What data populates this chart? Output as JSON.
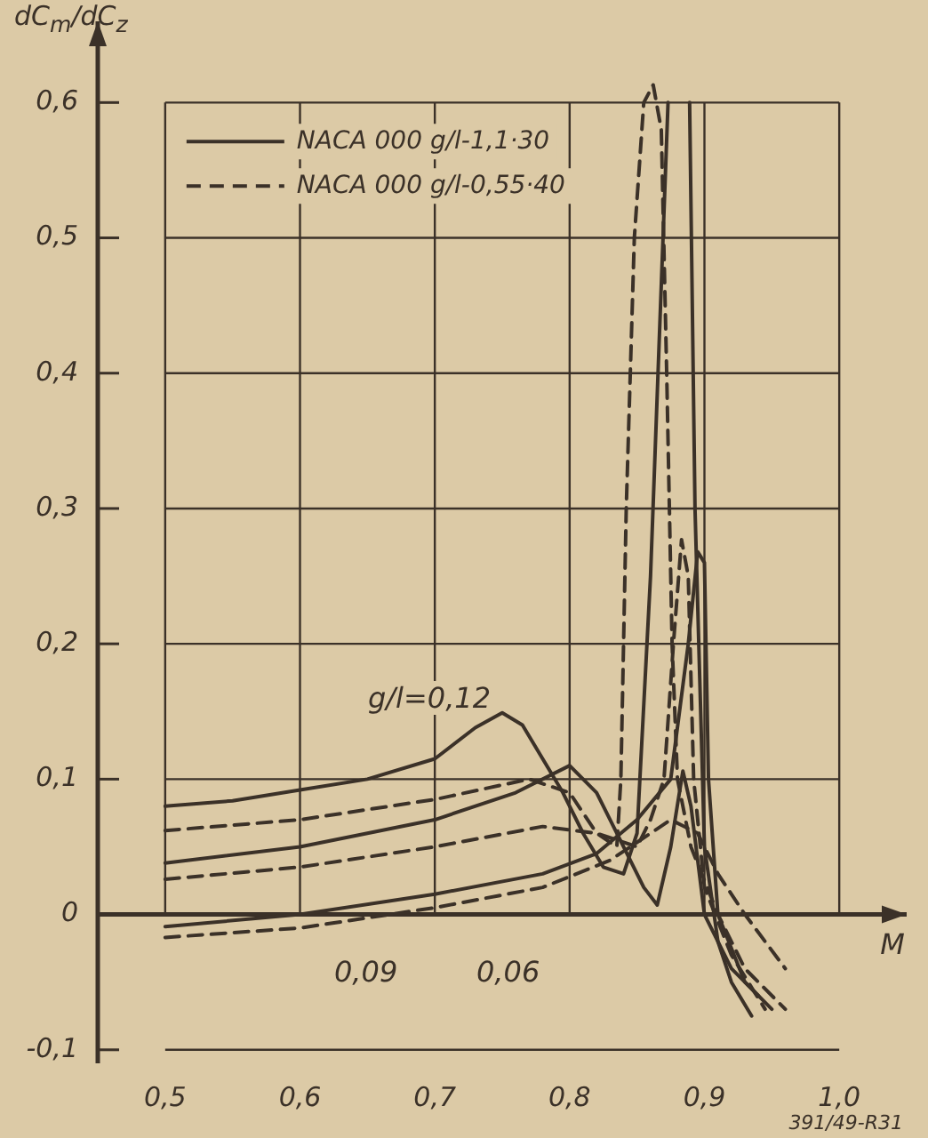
{
  "chart_data": {
    "type": "line",
    "ylabel": "dC$_{m}$/dC$_{z}$",
    "xlabel": "M",
    "xlim": [
      0.45,
      1.05
    ],
    "ylim": [
      -0.11,
      0.66
    ],
    "xticks": [
      {
        "value": 0.5,
        "label": "0,5"
      },
      {
        "value": 0.6,
        "label": "0,6"
      },
      {
        "value": 0.7,
        "label": "0,7"
      },
      {
        "value": 0.8,
        "label": "0,8"
      },
      {
        "value": 0.9,
        "label": "0,9"
      },
      {
        "value": 1.0,
        "label": "1,0"
      }
    ],
    "yticks": [
      {
        "value": -0.1,
        "label": "-0,1"
      },
      0,
      {
        "value": 0.1,
        "label": "0,1"
      },
      {
        "value": 0.2,
        "label": "0,2"
      },
      {
        "value": 0.3,
        "label": "0,3"
      },
      {
        "value": 0.4,
        "label": "0,4"
      },
      {
        "value": 0.5,
        "label": "0,5"
      },
      {
        "value": 0.6,
        "label": "0,6"
      }
    ],
    "grid": true,
    "legend": "top left",
    "marker": "none",
    "series": [
      {
        "name": "NACA 000 g/l-1,1·30",
        "color": "#3b3128",
        "line_style": "solid",
        "x": [
          0.5,
          0.55,
          0.6,
          0.65,
          0.7,
          0.73,
          0.75,
          0.765,
          0.78,
          0.795,
          0.81,
          0.825,
          0.84,
          0.85,
          0.86,
          0.873,
          0.88,
          0.889,
          0.893,
          0.9,
          0.91,
          0.92,
          0.935
        ],
        "values": [
          0.08,
          0.084,
          0.092,
          0.1,
          0.115,
          0.138,
          0.149,
          0.14,
          0.115,
          0.09,
          0.06,
          0.035,
          0.03,
          0.06,
          0.25,
          0.6,
          null,
          0.6,
          0.3,
          0.05,
          -0.02,
          -0.05,
          -0.075
        ]
      },
      {
        "name": "NACA 000 g/l-0,55·40",
        "color": "#3b3128",
        "line_style": "dashed",
        "x": [
          0.5,
          0.6,
          0.7,
          0.77,
          0.8,
          0.82,
          0.835,
          0.838,
          0.842,
          0.848,
          0.855,
          0.862,
          0.868,
          0.872,
          0.876,
          0.88,
          0.89,
          0.91,
          0.93,
          0.96
        ],
        "values": [
          0.062,
          0.07,
          0.085,
          0.1,
          0.09,
          0.06,
          0.05,
          0.1,
          0.3,
          0.5,
          0.6,
          0.613,
          0.58,
          0.4,
          0.2,
          0.1,
          0.05,
          0.0,
          -0.04,
          -0.07
        ]
      },
      {
        "color": "#3b3128",
        "line_style": "solid",
        "x": [
          0.5,
          0.6,
          0.7,
          0.76,
          0.8,
          0.82,
          0.84,
          0.855,
          0.865,
          0.875,
          0.884,
          0.89,
          0.9,
          0.92,
          0.94
        ],
        "values": [
          0.038,
          0.05,
          0.07,
          0.09,
          0.11,
          0.09,
          0.05,
          0.02,
          0.007,
          0.05,
          0.106,
          0.08,
          0.0,
          -0.04,
          -0.06
        ]
      },
      {
        "color": "#3b3128",
        "line_style": "dashed",
        "x": [
          0.5,
          0.6,
          0.7,
          0.78,
          0.82,
          0.85,
          0.86,
          0.87,
          0.877,
          0.883,
          0.888,
          0.892,
          0.9,
          0.92,
          0.945
        ],
        "values": [
          0.026,
          0.035,
          0.05,
          0.065,
          0.06,
          0.05,
          0.07,
          0.1,
          0.2,
          0.277,
          0.25,
          0.1,
          0.02,
          -0.03,
          -0.07
        ]
      },
      {
        "color": "#3b3128",
        "line_style": "solid",
        "x": [
          0.5,
          0.6,
          0.7,
          0.78,
          0.82,
          0.85,
          0.875,
          0.888,
          0.895,
          0.9,
          0.903,
          0.91,
          0.93,
          0.95
        ],
        "values": [
          -0.009,
          0.0,
          0.015,
          0.03,
          0.045,
          0.07,
          0.1,
          0.2,
          0.268,
          0.26,
          0.1,
          0.0,
          -0.05,
          -0.07
        ]
      },
      {
        "color": "#3b3128",
        "line_style": "dashed",
        "x": [
          0.5,
          0.6,
          0.7,
          0.78,
          0.83,
          0.86,
          0.875,
          0.895,
          0.91,
          0.93,
          0.96
        ],
        "values": [
          -0.017,
          -0.01,
          0.005,
          0.02,
          0.04,
          0.06,
          0.07,
          0.06,
          0.03,
          0.0,
          -0.04
        ]
      }
    ],
    "annotations": [
      "g/l=0,12",
      "0,09",
      "0,06",
      "391/49-R31"
    ]
  }
}
